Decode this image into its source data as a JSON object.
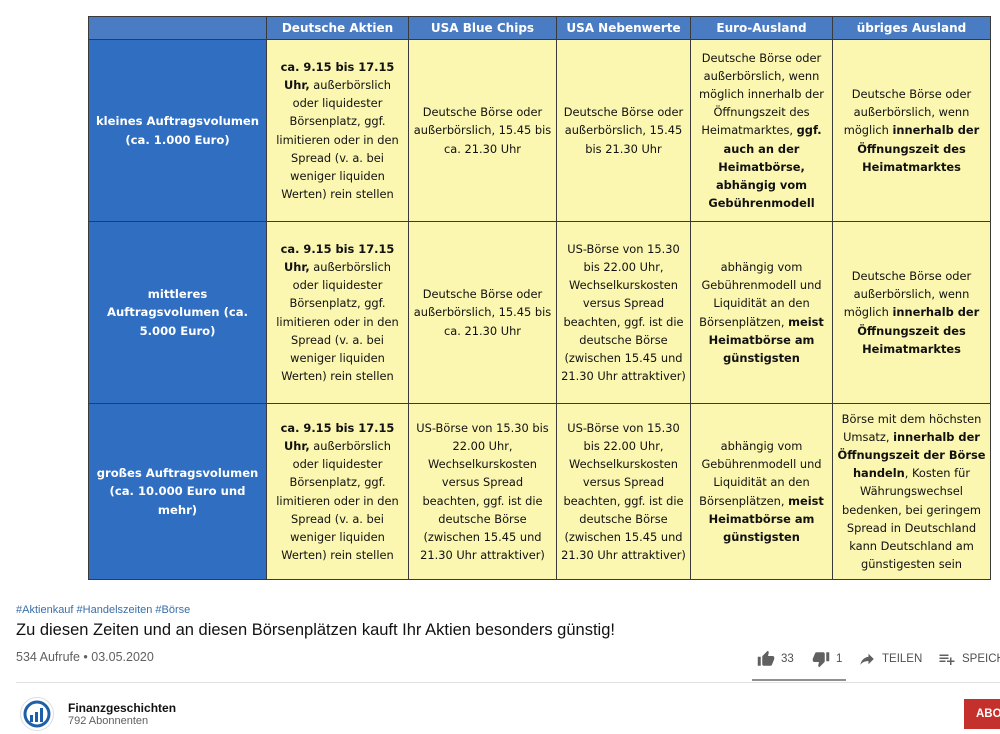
{
  "table": {
    "columns": [
      "Deutsche Aktien",
      "USA Blue Chips",
      "USA Nebenwerte",
      "Euro-Ausland",
      "übriges Ausland"
    ],
    "rows": [
      {
        "label": "kleines Auftragsvolumen (ca. 1.000 Euro)",
        "cells": [
          {
            "bold": "ca. 9.15 bis 17.15 Uhr,",
            "text": " außerbörslich oder liquidester Börsenplatz, ggf. limitieren oder in den Spread (v. a. bei weniger liquiden Werten) rein stellen"
          },
          {
            "text": "Deutsche Börse oder außerbörslich, 15.45 bis ca. 21.30 Uhr"
          },
          {
            "text": "Deutsche Börse oder außerbörslich, 15.45 bis 21.30 Uhr"
          },
          {
            "text": "Deutsche Börse oder außerbörslich, wenn möglich innerhalb der Öffnungszeit des Heimatmarktes, ",
            "bold": "ggf. auch an der Heimatbörse, abhängig vom Gebührenmodell"
          },
          {
            "text": "Deutsche Börse oder außerbörslich, wenn möglich ",
            "bold": "innerhalb der Öffnungszeit des Heimatmarktes"
          }
        ]
      },
      {
        "label": "mittleres Auftragsvolumen (ca. 5.000 Euro)",
        "cells": [
          {
            "bold": "ca. 9.15 bis 17.15 Uhr,",
            "text": " außerbörslich oder liquidester Börsenplatz, ggf. limitieren oder in den Spread (v. a. bei weniger liquiden Werten) rein stellen"
          },
          {
            "text": "Deutsche Börse oder außerbörslich, 15.45 bis ca. 21.30 Uhr"
          },
          {
            "text": "US-Börse von 15.30 bis 22.00 Uhr, Wechselkurskosten versus Spread beachten, ggf. ist die deutsche Börse (zwischen 15.45 und 21.30 Uhr attraktiver)"
          },
          {
            "text": "abhängig vom Gebührenmodell und Liquidität an den Börsenplätzen, ",
            "bold": "meist Heimatbörse am günstigsten"
          },
          {
            "text": "Deutsche Börse oder außerbörslich, wenn möglich ",
            "bold": "innerhalb der Öffnungszeit des Heimatmarktes"
          }
        ]
      },
      {
        "label": "großes Auftragsvolumen (ca. 10.000 Euro und mehr)",
        "cells": [
          {
            "bold": "ca. 9.15 bis 17.15 Uhr,",
            "text": " außerbörslich oder liquidester Börsenplatz, ggf. limitieren oder in den Spread (v. a. bei weniger liquiden Werten) rein stellen"
          },
          {
            "text": "US-Börse von 15.30 bis 22.00 Uhr, Wechselkurskosten versus Spread beachten, ggf. ist die deutsche Börse (zwischen 15.45 und 21.30 Uhr attraktiver)"
          },
          {
            "text": "US-Börse von 15.30 bis 22.00 Uhr, Wechselkurskosten versus Spread beachten, ggf. ist die deutsche Börse (zwischen 15.45 und 21.30 Uhr attraktiver)"
          },
          {
            "text": "abhängig vom Gebührenmodell und Liquidität an den Börsenplätzen, ",
            "bold": "meist Heimatbörse am günstigsten"
          },
          {
            "text": "Börse mit dem höchsten Umsatz, ",
            "bold": "innerhalb der Öffnungszeit der Börse handeln",
            "text2": ", Kosten für Währungswechsel bedenken, bei geringem Spread in Deutschland kann Deutschland am günstigesten sein"
          }
        ]
      }
    ]
  },
  "video": {
    "hashtags": "#Aktienkauf #Handelszeiten #Börse",
    "title": "Zu diesen Zeiten und an diesen Börsenplätzen kauft Ihr Aktien besonders günstig!",
    "views_date": "534 Aufrufe • 03.05.2020",
    "likes": "33",
    "dislikes": "1",
    "share_label": "TEILEN",
    "save_label": "SPEICHERN"
  },
  "channel": {
    "name": "Finanzgeschichten",
    "subscribers": "792 Abonnenten",
    "subscribe_label": "ABO"
  },
  "colors": {
    "header_blue": "#4a7cc4",
    "rowhead_blue": "#2f6ec1",
    "cell_yellow": "#fbf6b0",
    "subscribe_red": "#c4302b"
  }
}
